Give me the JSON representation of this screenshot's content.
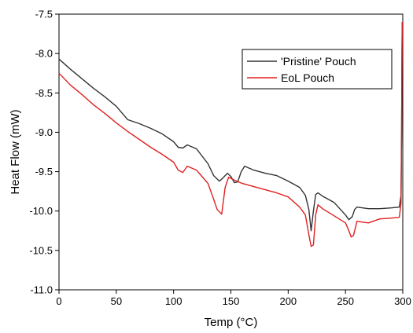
{
  "chart_data": {
    "type": "line",
    "xlabel": "Temp (°C)",
    "ylabel": "Heat Flow (mW)",
    "xlim": [
      0,
      300
    ],
    "ylim": [
      -11.0,
      -7.5
    ],
    "xticks": [
      0,
      50,
      100,
      150,
      200,
      250,
      300
    ],
    "yticks": [
      -11.0,
      -10.5,
      -10.0,
      -9.5,
      -9.0,
      -8.5,
      -8.0,
      -7.5
    ],
    "xtick_labels": [
      "0",
      "50",
      "100",
      "150",
      "200",
      "250",
      "300"
    ],
    "ytick_labels": [
      "-11.0",
      "-10.5",
      "-10.0",
      "-9.5",
      "-9.0",
      "-8.5",
      "-8.0",
      "-7.5"
    ],
    "grid": false,
    "legend_position": "top-right",
    "series": [
      {
        "name": "'Pristine' Pouch",
        "color": "#333333",
        "x": [
          0,
          10,
          20,
          30,
          40,
          50,
          60,
          70,
          80,
          90,
          100,
          104,
          108,
          112,
          120,
          130,
          135,
          140,
          143,
          147,
          150,
          153,
          156,
          159,
          162,
          170,
          180,
          190,
          200,
          210,
          215,
          218,
          220,
          222,
          224,
          226,
          230,
          240,
          250,
          253,
          256,
          258,
          260,
          270,
          280,
          290,
          297,
          298.5,
          299,
          299.3,
          299.5
        ],
        "y": [
          -8.07,
          -8.2,
          -8.32,
          -8.44,
          -8.55,
          -8.67,
          -8.84,
          -8.89,
          -8.95,
          -9.02,
          -9.12,
          -9.19,
          -9.2,
          -9.16,
          -9.21,
          -9.4,
          -9.55,
          -9.62,
          -9.58,
          -9.52,
          -9.56,
          -9.64,
          -9.63,
          -9.5,
          -9.43,
          -9.48,
          -9.52,
          -9.55,
          -9.62,
          -9.7,
          -9.8,
          -9.98,
          -10.25,
          -10.0,
          -9.79,
          -9.77,
          -9.81,
          -9.89,
          -10.05,
          -10.11,
          -10.07,
          -9.98,
          -9.95,
          -9.97,
          -9.97,
          -9.96,
          -9.95,
          -9.8,
          -9.0,
          -8.0,
          -7.6
        ]
      },
      {
        "name": "EoL Pouch",
        "color": "#e02020",
        "x": [
          0,
          10,
          20,
          30,
          40,
          50,
          60,
          70,
          80,
          90,
          100,
          104,
          108,
          112,
          120,
          130,
          135,
          138,
          142,
          145,
          148,
          152,
          155,
          160,
          170,
          180,
          190,
          200,
          210,
          215,
          218,
          220,
          222,
          224,
          226,
          230,
          240,
          250,
          253,
          255,
          257,
          260,
          270,
          280,
          290,
          297,
          298.5,
          299,
          299.3,
          299.5
        ],
        "y": [
          -8.25,
          -8.4,
          -8.52,
          -8.65,
          -8.76,
          -8.88,
          -8.99,
          -9.09,
          -9.19,
          -9.28,
          -9.38,
          -9.48,
          -9.51,
          -9.43,
          -9.48,
          -9.65,
          -9.85,
          -9.98,
          -10.04,
          -9.7,
          -9.57,
          -9.6,
          -9.62,
          -9.65,
          -9.69,
          -9.73,
          -9.77,
          -9.82,
          -9.95,
          -10.05,
          -10.3,
          -10.45,
          -10.43,
          -10.05,
          -9.92,
          -9.97,
          -10.06,
          -10.15,
          -10.25,
          -10.33,
          -10.31,
          -10.13,
          -10.15,
          -10.1,
          -10.09,
          -10.08,
          -9.9,
          -9.0,
          -8.0,
          -7.6
        ]
      }
    ]
  }
}
